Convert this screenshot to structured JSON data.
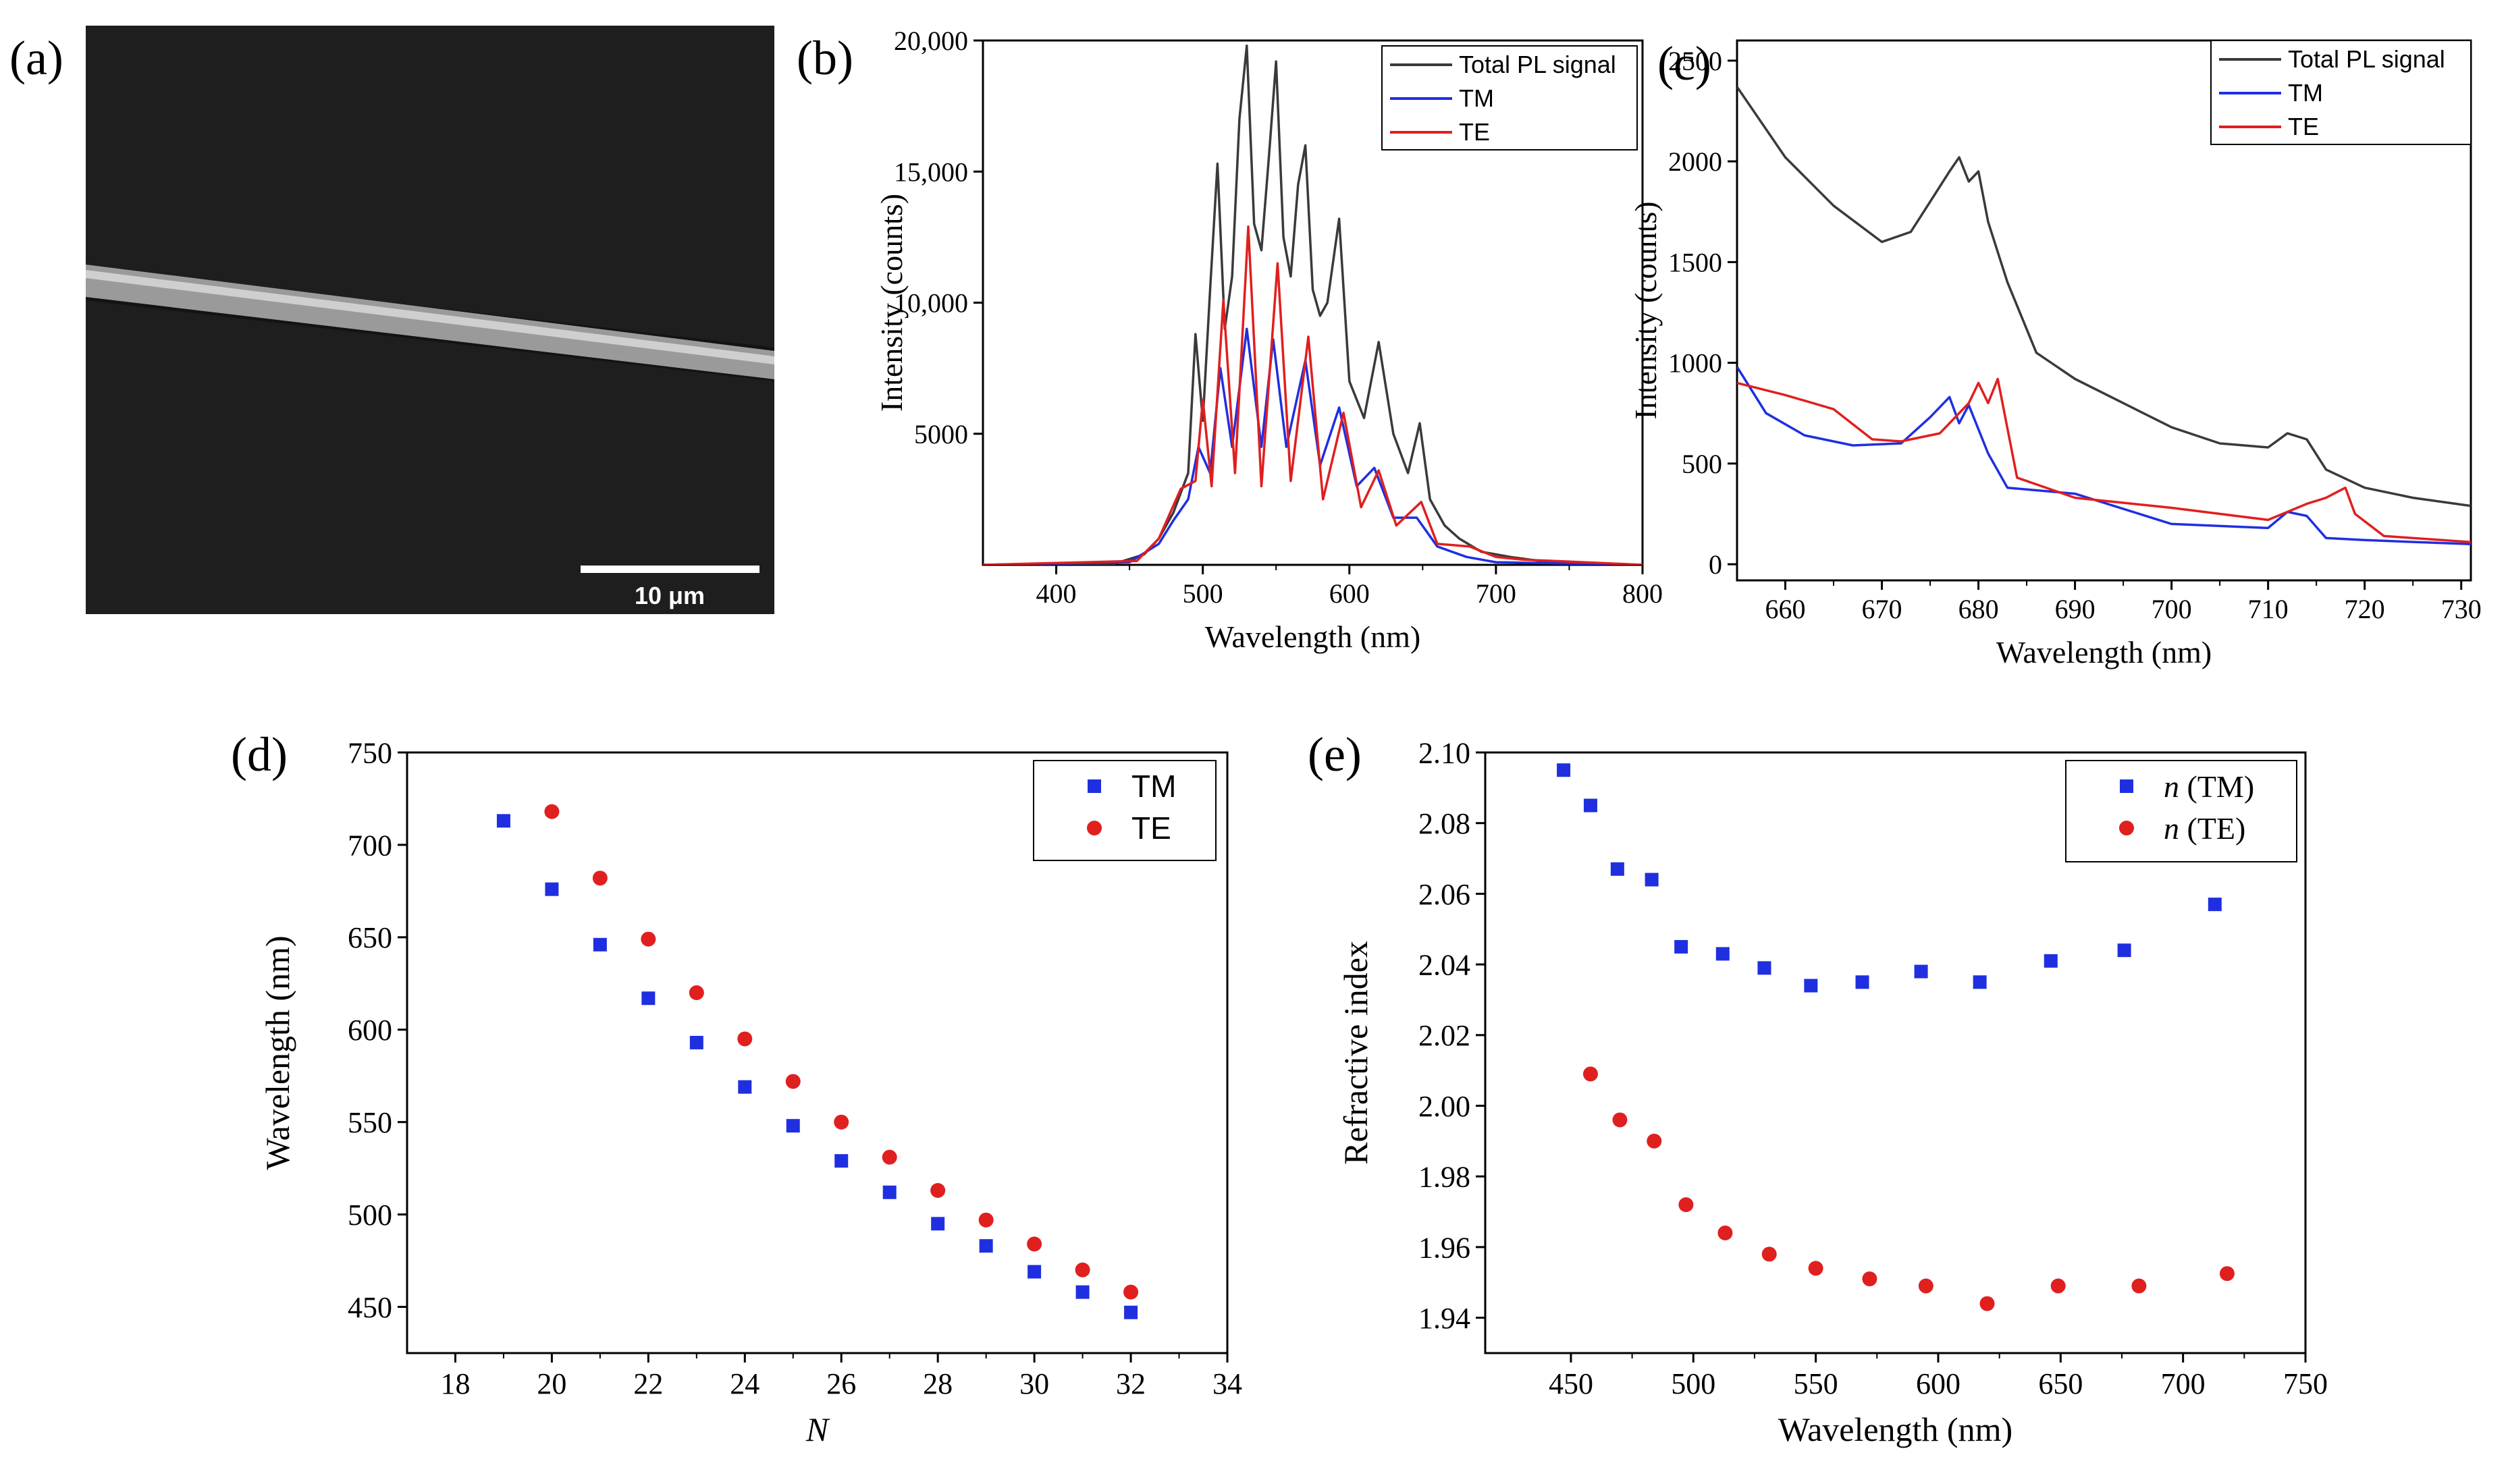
{
  "panels": {
    "a": {
      "label": "(a)",
      "scale_bar_label": "10 μm"
    },
    "b": {
      "label": "(b)"
    },
    "c": {
      "label": "(c)"
    },
    "d": {
      "label": "(d)"
    },
    "e": {
      "label": "(e)"
    }
  },
  "chart_data": [
    {
      "panel": "b",
      "type": "line",
      "xlabel": "Wavelength (nm)",
      "ylabel": "Intensity (counts)",
      "xlim": [
        350,
        800
      ],
      "ylim": [
        0,
        20000
      ],
      "xticks": [
        400,
        500,
        600,
        700,
        800
      ],
      "yticks": [
        5000,
        10000,
        15000,
        20000
      ],
      "ytick_labels": [
        "5000",
        "10,000",
        "15,000",
        "20,000"
      ],
      "legend_position": "top-right",
      "series": [
        {
          "name": "Total PL signal",
          "color": "#3a3a3a",
          "x": [
            350,
            440,
            460,
            470,
            480,
            490,
            495,
            500,
            505,
            510,
            515,
            520,
            525,
            530,
            535,
            540,
            545,
            550,
            555,
            560,
            565,
            570,
            575,
            580,
            585,
            593,
            600,
            610,
            620,
            630,
            640,
            648,
            655,
            665,
            675,
            690,
            710,
            730,
            760,
            800
          ],
          "y": [
            0,
            50,
            400,
            1000,
            2000,
            3500,
            8800,
            5500,
            10500,
            15300,
            9000,
            11000,
            17000,
            19800,
            13000,
            12000,
            15500,
            19200,
            12500,
            11000,
            14500,
            16000,
            10500,
            9500,
            10000,
            13200,
            7000,
            5600,
            8500,
            5000,
            3500,
            5400,
            2500,
            1500,
            1000,
            500,
            300,
            150,
            50,
            0
          ]
        },
        {
          "name": "TM",
          "color": "#1f2fe0",
          "x": [
            350,
            450,
            470,
            480,
            490,
            497,
            505,
            512,
            520,
            530,
            540,
            548,
            557,
            570,
            580,
            593,
            605,
            617,
            630,
            646,
            660,
            680,
            700,
            800
          ],
          "y": [
            0,
            100,
            800,
            1700,
            2500,
            4500,
            3500,
            7500,
            4500,
            9000,
            4500,
            8600,
            4500,
            7800,
            3800,
            6000,
            3000,
            3700,
            1800,
            1800,
            700,
            300,
            100,
            0
          ]
        },
        {
          "name": "TE",
          "color": "#e01f1f",
          "x": [
            350,
            455,
            470,
            485,
            495,
            500,
            506,
            514,
            522,
            531,
            540,
            551,
            560,
            572,
            582,
            596,
            608,
            620,
            632,
            649,
            660,
            682,
            700,
            718,
            800
          ],
          "y": [
            0,
            150,
            1000,
            2900,
            3200,
            6300,
            3000,
            10100,
            3500,
            12900,
            3000,
            11500,
            3200,
            8700,
            2500,
            5800,
            2200,
            3600,
            1500,
            2400,
            800,
            700,
            300,
            200,
            0
          ]
        }
      ]
    },
    {
      "panel": "c",
      "type": "line",
      "xlabel": "Wavelength (nm)",
      "ylabel": "Intensity (counts)",
      "xlim": [
        655,
        731
      ],
      "ylim": [
        -80,
        2600
      ],
      "xticks": [
        660,
        670,
        680,
        690,
        700,
        710,
        720,
        730
      ],
      "yticks": [
        0,
        500,
        1000,
        1500,
        2000,
        2500
      ],
      "legend_position": "top-right",
      "series": [
        {
          "name": "Total PL signal",
          "color": "#3a3a3a",
          "x": [
            655,
            660,
            665,
            670,
            673,
            675,
            677,
            678,
            679,
            680,
            681,
            683,
            686,
            690,
            695,
            700,
            705,
            710,
            712,
            714,
            716,
            720,
            725,
            731
          ],
          "y": [
            2370,
            2020,
            1780,
            1600,
            1650,
            1800,
            1950,
            2020,
            1900,
            1950,
            1700,
            1400,
            1050,
            920,
            800,
            680,
            600,
            580,
            650,
            620,
            470,
            380,
            330,
            290
          ]
        },
        {
          "name": "TM",
          "color": "#1f2fe0",
          "x": [
            655,
            658,
            662,
            667,
            672,
            675,
            677,
            678,
            679,
            681,
            683,
            690,
            700,
            710,
            712,
            714,
            716,
            720,
            731
          ],
          "y": [
            980,
            750,
            640,
            590,
            600,
            730,
            830,
            700,
            790,
            550,
            380,
            350,
            200,
            180,
            260,
            240,
            130,
            120,
            100
          ]
        },
        {
          "name": "TE",
          "color": "#e01f1f",
          "x": [
            655,
            660,
            665,
            669,
            672,
            676,
            679,
            680,
            681,
            682,
            684,
            690,
            700,
            710,
            714,
            716,
            718,
            719,
            722,
            731
          ],
          "y": [
            900,
            840,
            770,
            620,
            610,
            650,
            800,
            900,
            800,
            920,
            430,
            330,
            280,
            220,
            300,
            330,
            380,
            250,
            140,
            110
          ]
        }
      ]
    },
    {
      "panel": "d",
      "type": "scatter",
      "xlabel": "N",
      "ylabel": "Wavelength (nm)",
      "xlim": [
        17,
        34
      ],
      "ylim": [
        425,
        750
      ],
      "xticks": [
        18,
        20,
        22,
        24,
        26,
        28,
        30,
        32,
        34
      ],
      "yticks": [
        450,
        500,
        550,
        600,
        650,
        700,
        750
      ],
      "legend_position": "top-right",
      "series": [
        {
          "name": "TM",
          "marker": "square",
          "color": "#1f2fe0",
          "x": [
            19,
            20,
            21,
            22,
            23,
            24,
            25,
            26,
            27,
            28,
            29,
            30,
            31,
            32
          ],
          "y": [
            713,
            676,
            646,
            617,
            593,
            569,
            548,
            529,
            512,
            495,
            483,
            469,
            458,
            447
          ]
        },
        {
          "name": "TE",
          "marker": "circle",
          "color": "#e01f1f",
          "x": [
            20,
            21,
            22,
            23,
            24,
            25,
            26,
            27,
            28,
            29,
            30,
            31,
            32
          ],
          "y": [
            718,
            682,
            649,
            620,
            595,
            572,
            550,
            531,
            513,
            497,
            484,
            470,
            458
          ]
        }
      ]
    },
    {
      "panel": "e",
      "type": "scatter",
      "xlabel": "Wavelength (nm)",
      "ylabel": "Refractive index",
      "xlim": [
        415,
        750
      ],
      "ylim": [
        1.93,
        2.1
      ],
      "xticks": [
        450,
        500,
        550,
        600,
        650,
        700,
        750
      ],
      "yticks": [
        1.94,
        1.96,
        1.98,
        2.0,
        2.02,
        2.04,
        2.06,
        2.08,
        2.1
      ],
      "ytick_labels": [
        "1.94",
        "1.96",
        "1.98",
        "2.00",
        "2.02",
        "2.04",
        "2.06",
        "2.08",
        "2.10"
      ],
      "legend_position": "top-right",
      "series": [
        {
          "name": "n (TM)",
          "label_italic": "n",
          "label_rest": " (TM)",
          "marker": "square",
          "color": "#1f2fe0",
          "x": [
            447,
            458,
            469,
            483,
            495,
            512,
            529,
            548,
            569,
            593,
            617,
            646,
            676,
            713
          ],
          "y": [
            2.095,
            2.085,
            2.067,
            2.064,
            2.045,
            2.043,
            2.039,
            2.034,
            2.035,
            2.038,
            2.035,
            2.041,
            2.044,
            2.057
          ]
        },
        {
          "name": "n (TE)",
          "label_italic": "n",
          "label_rest": " (TE)",
          "marker": "circle",
          "color": "#e01f1f",
          "x": [
            458,
            470,
            484,
            497,
            513,
            531,
            550,
            572,
            595,
            620,
            649,
            682,
            718
          ],
          "y": [
            2.009,
            1.996,
            1.99,
            1.972,
            1.964,
            1.958,
            1.954,
            1.951,
            1.949,
            1.944,
            1.949,
            1.949,
            1.9525
          ]
        }
      ]
    }
  ]
}
